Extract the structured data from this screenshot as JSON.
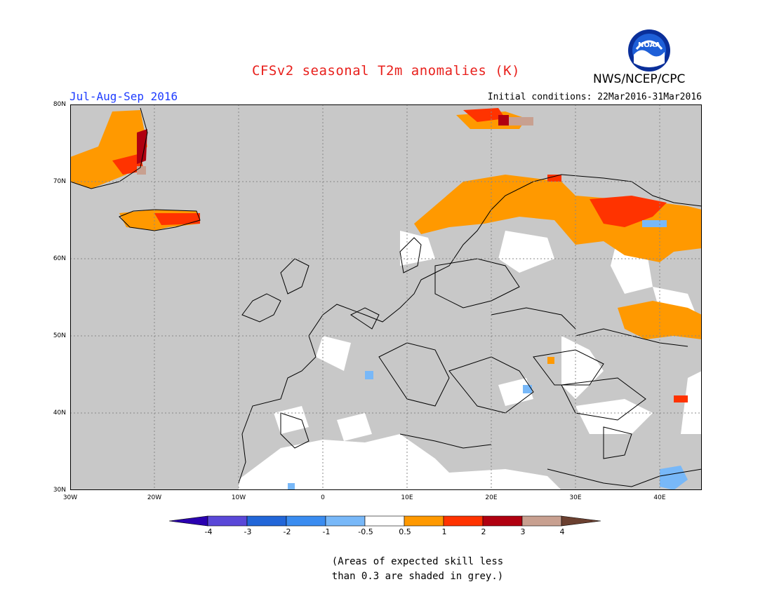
{
  "header": {
    "title": "CFSv2 seasonal T2m anomalies (K)",
    "agency": "NWS/NCEP/CPC",
    "season": "Jul-Aug-Sep 2016",
    "initial_conditions": "Initial conditions: 22Mar2016-31Mar2016"
  },
  "logo": {
    "text": "NOAA",
    "icon": "noaa-logo-icon"
  },
  "map": {
    "region": "Europe",
    "lon_range": [
      -30,
      45
    ],
    "lat_range": [
      30,
      80
    ],
    "background_color": "#c8c8c8",
    "ocean_color": "#c8c8c8",
    "gridlines": "dotted",
    "x_ticks": [
      "30W",
      "20W",
      "10W",
      "0",
      "10E",
      "20E",
      "30E",
      "40E"
    ],
    "y_ticks": [
      "80N",
      "70N",
      "60N",
      "50N",
      "40N",
      "30N"
    ]
  },
  "colorbar": {
    "labels": [
      "-4",
      "-3",
      "-2",
      "-1",
      "-0.5",
      "0.5",
      "1",
      "2",
      "3",
      "4"
    ],
    "colors": [
      "#2a00b0",
      "#5a48d8",
      "#2266d8",
      "#3a8cf0",
      "#78b8f8",
      "#ffffff",
      "#ff9900",
      "#ff3300",
      "#b00010",
      "#c8a090",
      "#6b4030"
    ]
  },
  "footnote": {
    "line1": "(Areas of expected skill less",
    "line2": "than 0.3 are shaded in grey.)"
  }
}
